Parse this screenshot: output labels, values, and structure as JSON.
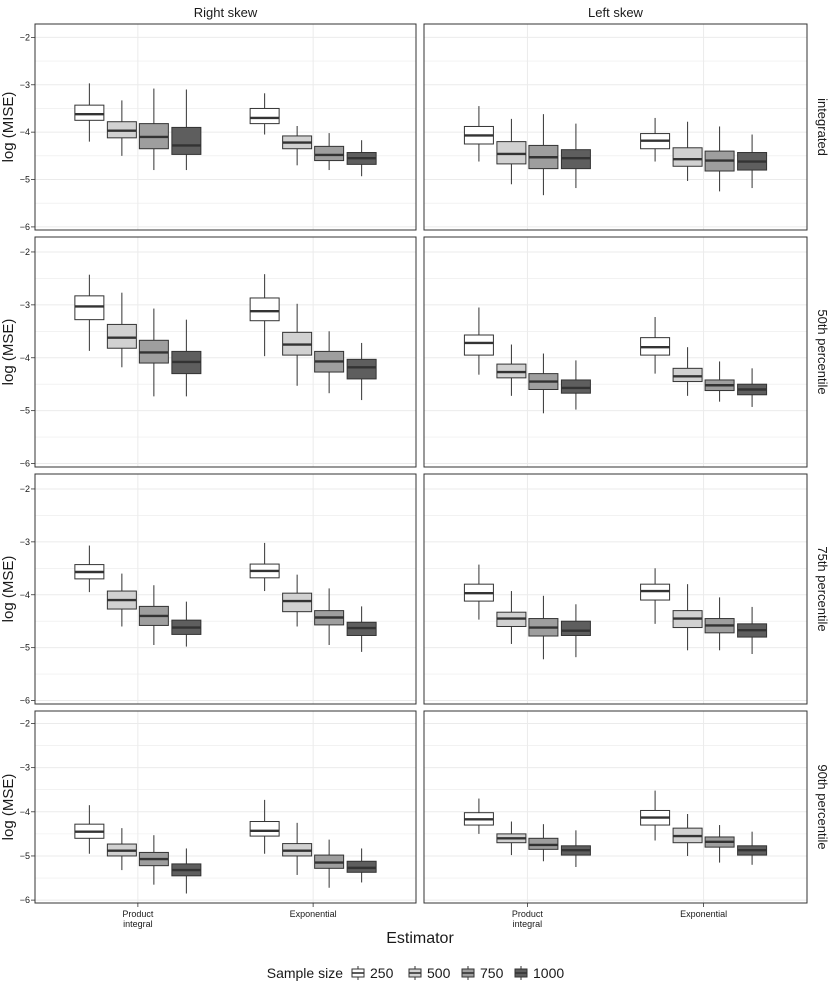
{
  "chart_data": {
    "type": "boxplot",
    "xlabel": "Estimator",
    "categories": [
      "Product\nintegral",
      "Exponential"
    ],
    "column_strips": [
      "Right skew",
      "Left skew"
    ],
    "legend": {
      "title": "Sample size",
      "position": "bottom",
      "entries": [
        {
          "label": "250",
          "fill": "#ffffff"
        },
        {
          "label": "500",
          "fill": "#d1d1d1"
        },
        {
          "label": "750",
          "fill": "#9e9e9e"
        },
        {
          "label": "1000",
          "fill": "#5e5e5e"
        }
      ]
    },
    "ylim": [
      -6,
      -2
    ],
    "yticks": [
      -2,
      -3,
      -4,
      -5,
      -6
    ],
    "grid": true,
    "rows": [
      {
        "strip": "integrated",
        "ylabel": "log (MISE)",
        "panels": [
          {
            "col": "Right skew",
            "groups": [
              {
                "category": "Product\nintegral",
                "boxes": [
                  {
                    "n": "250",
                    "whislo": -4.2,
                    "q1": -3.75,
                    "med": -3.62,
                    "q3": -3.43,
                    "whishi": -2.97
                  },
                  {
                    "n": "500",
                    "whislo": -4.5,
                    "q1": -4.12,
                    "med": -3.97,
                    "q3": -3.78,
                    "whishi": -3.33
                  },
                  {
                    "n": "750",
                    "whislo": -4.8,
                    "q1": -4.35,
                    "med": -4.1,
                    "q3": -3.82,
                    "whishi": -3.08
                  },
                  {
                    "n": "1000",
                    "whislo": -4.8,
                    "q1": -4.47,
                    "med": -4.28,
                    "q3": -3.9,
                    "whishi": -3.1
                  }
                ]
              },
              {
                "category": "Exponential",
                "boxes": [
                  {
                    "n": "250",
                    "whislo": -4.05,
                    "q1": -3.82,
                    "med": -3.7,
                    "q3": -3.5,
                    "whishi": -3.18
                  },
                  {
                    "n": "500",
                    "whislo": -4.7,
                    "q1": -4.35,
                    "med": -4.22,
                    "q3": -4.08,
                    "whishi": -3.87
                  },
                  {
                    "n": "750",
                    "whislo": -4.8,
                    "q1": -4.6,
                    "med": -4.48,
                    "q3": -4.3,
                    "whishi": -4.02
                  },
                  {
                    "n": "1000",
                    "whislo": -4.93,
                    "q1": -4.68,
                    "med": -4.55,
                    "q3": -4.43,
                    "whishi": -4.17
                  }
                ]
              }
            ]
          },
          {
            "col": "Left skew",
            "groups": [
              {
                "category": "Product\nintegral",
                "boxes": [
                  {
                    "n": "250",
                    "whislo": -4.62,
                    "q1": -4.25,
                    "med": -4.07,
                    "q3": -3.88,
                    "whishi": -3.45
                  },
                  {
                    "n": "500",
                    "whislo": -5.1,
                    "q1": -4.67,
                    "med": -4.46,
                    "q3": -4.2,
                    "whishi": -3.72
                  },
                  {
                    "n": "750",
                    "whislo": -5.33,
                    "q1": -4.77,
                    "med": -4.53,
                    "q3": -4.28,
                    "whishi": -3.62
                  },
                  {
                    "n": "1000",
                    "whislo": -5.18,
                    "q1": -4.77,
                    "med": -4.55,
                    "q3": -4.37,
                    "whishi": -3.82
                  }
                ]
              },
              {
                "category": "Exponential",
                "boxes": [
                  {
                    "n": "250",
                    "whislo": -4.62,
                    "q1": -4.35,
                    "med": -4.18,
                    "q3": -4.03,
                    "whishi": -3.7
                  },
                  {
                    "n": "500",
                    "whislo": -5.03,
                    "q1": -4.72,
                    "med": -4.57,
                    "q3": -4.33,
                    "whishi": -3.78
                  },
                  {
                    "n": "750",
                    "whislo": -5.25,
                    "q1": -4.82,
                    "med": -4.6,
                    "q3": -4.4,
                    "whishi": -3.88
                  },
                  {
                    "n": "1000",
                    "whislo": -5.18,
                    "q1": -4.8,
                    "med": -4.62,
                    "q3": -4.43,
                    "whishi": -4.05
                  }
                ]
              }
            ]
          }
        ]
      },
      {
        "strip": "50th percentile",
        "ylabel": "log (MSE)",
        "panels": [
          {
            "col": "Right skew",
            "groups": [
              {
                "category": "Product\nintegral",
                "boxes": [
                  {
                    "n": "250",
                    "whislo": -3.87,
                    "q1": -3.28,
                    "med": -3.03,
                    "q3": -2.83,
                    "whishi": -2.43
                  },
                  {
                    "n": "500",
                    "whislo": -4.18,
                    "q1": -3.82,
                    "med": -3.62,
                    "q3": -3.37,
                    "whishi": -2.77
                  },
                  {
                    "n": "750",
                    "whislo": -4.73,
                    "q1": -4.1,
                    "med": -3.9,
                    "q3": -3.67,
                    "whishi": -3.07
                  },
                  {
                    "n": "1000",
                    "whislo": -4.73,
                    "q1": -4.3,
                    "med": -4.08,
                    "q3": -3.88,
                    "whishi": -3.28
                  }
                ]
              },
              {
                "category": "Exponential",
                "boxes": [
                  {
                    "n": "250",
                    "whislo": -3.97,
                    "q1": -3.3,
                    "med": -3.12,
                    "q3": -2.87,
                    "whishi": -2.42
                  },
                  {
                    "n": "500",
                    "whislo": -4.53,
                    "q1": -3.95,
                    "med": -3.75,
                    "q3": -3.52,
                    "whishi": -2.98
                  },
                  {
                    "n": "750",
                    "whislo": -4.67,
                    "q1": -4.27,
                    "med": -4.07,
                    "q3": -3.88,
                    "whishi": -3.5
                  },
                  {
                    "n": "1000",
                    "whislo": -4.8,
                    "q1": -4.4,
                    "med": -4.18,
                    "q3": -4.03,
                    "whishi": -3.72
                  }
                ]
              }
            ]
          },
          {
            "col": "Left skew",
            "groups": [
              {
                "category": "Product\nintegral",
                "boxes": [
                  {
                    "n": "250",
                    "whislo": -4.32,
                    "q1": -3.95,
                    "med": -3.72,
                    "q3": -3.57,
                    "whishi": -3.05
                  },
                  {
                    "n": "500",
                    "whislo": -4.72,
                    "q1": -4.38,
                    "med": -4.27,
                    "q3": -4.12,
                    "whishi": -3.75
                  },
                  {
                    "n": "750",
                    "whislo": -5.05,
                    "q1": -4.6,
                    "med": -4.45,
                    "q3": -4.3,
                    "whishi": -3.92
                  },
                  {
                    "n": "1000",
                    "whislo": -4.98,
                    "q1": -4.67,
                    "med": -4.57,
                    "q3": -4.42,
                    "whishi": -4.05
                  }
                ]
              },
              {
                "category": "Exponential",
                "boxes": [
                  {
                    "n": "250",
                    "whislo": -4.3,
                    "q1": -3.95,
                    "med": -3.8,
                    "q3": -3.62,
                    "whishi": -3.23
                  },
                  {
                    "n": "500",
                    "whislo": -4.72,
                    "q1": -4.45,
                    "med": -4.35,
                    "q3": -4.2,
                    "whishi": -3.8
                  },
                  {
                    "n": "750",
                    "whislo": -4.83,
                    "q1": -4.62,
                    "med": -4.52,
                    "q3": -4.42,
                    "whishi": -4.07
                  },
                  {
                    "n": "1000",
                    "whislo": -4.93,
                    "q1": -4.7,
                    "med": -4.6,
                    "q3": -4.5,
                    "whishi": -4.2
                  }
                ]
              }
            ]
          }
        ]
      },
      {
        "strip": "75th percentile",
        "ylabel": "log (MSE)",
        "panels": [
          {
            "col": "Right skew",
            "groups": [
              {
                "category": "Product\nintegral",
                "boxes": [
                  {
                    "n": "250",
                    "whislo": -3.95,
                    "q1": -3.7,
                    "med": -3.57,
                    "q3": -3.43,
                    "whishi": -3.07
                  },
                  {
                    "n": "500",
                    "whislo": -4.6,
                    "q1": -4.27,
                    "med": -4.1,
                    "q3": -3.93,
                    "whishi": -3.6
                  },
                  {
                    "n": "750",
                    "whislo": -4.95,
                    "q1": -4.58,
                    "med": -4.4,
                    "q3": -4.22,
                    "whishi": -3.82
                  },
                  {
                    "n": "1000",
                    "whislo": -4.98,
                    "q1": -4.75,
                    "med": -4.62,
                    "q3": -4.48,
                    "whishi": -4.13
                  }
                ]
              },
              {
                "category": "Exponential",
                "boxes": [
                  {
                    "n": "250",
                    "whislo": -3.93,
                    "q1": -3.68,
                    "med": -3.55,
                    "q3": -3.42,
                    "whishi": -3.02
                  },
                  {
                    "n": "500",
                    "whislo": -4.6,
                    "q1": -4.32,
                    "med": -4.12,
                    "q3": -3.97,
                    "whishi": -3.62
                  },
                  {
                    "n": "750",
                    "whislo": -4.95,
                    "q1": -4.57,
                    "med": -4.43,
                    "q3": -4.3,
                    "whishi": -3.88
                  },
                  {
                    "n": "1000",
                    "whislo": -5.08,
                    "q1": -4.77,
                    "med": -4.63,
                    "q3": -4.52,
                    "whishi": -4.22
                  }
                ]
              }
            ]
          },
          {
            "col": "Left skew",
            "groups": [
              {
                "category": "Product\nintegral",
                "boxes": [
                  {
                    "n": "250",
                    "whislo": -4.47,
                    "q1": -4.12,
                    "med": -3.97,
                    "q3": -3.8,
                    "whishi": -3.43
                  },
                  {
                    "n": "500",
                    "whislo": -4.93,
                    "q1": -4.6,
                    "med": -4.45,
                    "q3": -4.33,
                    "whishi": -3.93
                  },
                  {
                    "n": "750",
                    "whislo": -5.22,
                    "q1": -4.78,
                    "med": -4.62,
                    "q3": -4.45,
                    "whishi": -4.02
                  },
                  {
                    "n": "1000",
                    "whislo": -5.18,
                    "q1": -4.77,
                    "med": -4.68,
                    "q3": -4.5,
                    "whishi": -4.18
                  }
                ]
              },
              {
                "category": "Exponential",
                "boxes": [
                  {
                    "n": "250",
                    "whislo": -4.55,
                    "q1": -4.1,
                    "med": -3.93,
                    "q3": -3.8,
                    "whishi": -3.5
                  },
                  {
                    "n": "500",
                    "whislo": -5.05,
                    "q1": -4.62,
                    "med": -4.45,
                    "q3": -4.3,
                    "whishi": -3.8
                  },
                  {
                    "n": "750",
                    "whislo": -5.05,
                    "q1": -4.72,
                    "med": -4.58,
                    "q3": -4.45,
                    "whishi": -4.05
                  },
                  {
                    "n": "1000",
                    "whislo": -5.12,
                    "q1": -4.8,
                    "med": -4.67,
                    "q3": -4.55,
                    "whishi": -4.23
                  }
                ]
              }
            ]
          }
        ]
      },
      {
        "strip": "90th percentile",
        "ylabel": "log (MSE)",
        "panels": [
          {
            "col": "Right skew",
            "groups": [
              {
                "category": "Product\nintegral",
                "boxes": [
                  {
                    "n": "250",
                    "whislo": -4.95,
                    "q1": -4.6,
                    "med": -4.45,
                    "q3": -4.28,
                    "whishi": -3.85
                  },
                  {
                    "n": "500",
                    "whislo": -5.32,
                    "q1": -5.0,
                    "med": -4.88,
                    "q3": -4.73,
                    "whishi": -4.37
                  },
                  {
                    "n": "750",
                    "whislo": -5.65,
                    "q1": -5.22,
                    "med": -5.07,
                    "q3": -4.92,
                    "whishi": -4.53
                  },
                  {
                    "n": "1000",
                    "whislo": -5.85,
                    "q1": -5.45,
                    "med": -5.32,
                    "q3": -5.18,
                    "whishi": -4.83
                  }
                ]
              },
              {
                "category": "Exponential",
                "boxes": [
                  {
                    "n": "250",
                    "whislo": -4.95,
                    "q1": -4.55,
                    "med": -4.43,
                    "q3": -4.22,
                    "whishi": -3.73
                  },
                  {
                    "n": "500",
                    "whislo": -5.43,
                    "q1": -5.0,
                    "med": -4.88,
                    "q3": -4.72,
                    "whishi": -4.25
                  },
                  {
                    "n": "750",
                    "whislo": -5.72,
                    "q1": -5.28,
                    "med": -5.15,
                    "q3": -4.98,
                    "whishi": -4.63
                  },
                  {
                    "n": "1000",
                    "whislo": -5.6,
                    "q1": -5.37,
                    "med": -5.27,
                    "q3": -5.12,
                    "whishi": -4.83
                  }
                ]
              }
            ]
          },
          {
            "col": "Left skew",
            "groups": [
              {
                "category": "Product\nintegral",
                "boxes": [
                  {
                    "n": "250",
                    "whislo": -4.5,
                    "q1": -4.3,
                    "med": -4.17,
                    "q3": -4.02,
                    "whishi": -3.7
                  },
                  {
                    "n": "500",
                    "whislo": -4.98,
                    "q1": -4.7,
                    "med": -4.6,
                    "q3": -4.5,
                    "whishi": -4.22
                  },
                  {
                    "n": "750",
                    "whislo": -5.12,
                    "q1": -4.85,
                    "med": -4.75,
                    "q3": -4.6,
                    "whishi": -4.28
                  },
                  {
                    "n": "1000",
                    "whislo": -5.25,
                    "q1": -4.98,
                    "med": -4.87,
                    "q3": -4.77,
                    "whishi": -4.42
                  }
                ]
              },
              {
                "category": "Exponential",
                "boxes": [
                  {
                    "n": "250",
                    "whislo": -4.65,
                    "q1": -4.3,
                    "med": -4.13,
                    "q3": -3.97,
                    "whishi": -3.52
                  },
                  {
                    "n": "500",
                    "whislo": -5.0,
                    "q1": -4.7,
                    "med": -4.55,
                    "q3": -4.37,
                    "whishi": -4.05
                  },
                  {
                    "n": "750",
                    "whislo": -5.15,
                    "q1": -4.8,
                    "med": -4.68,
                    "q3": -4.57,
                    "whishi": -4.3
                  },
                  {
                    "n": "1000",
                    "whislo": -5.2,
                    "q1": -4.98,
                    "med": -4.87,
                    "q3": -4.77,
                    "whishi": -4.45
                  }
                ]
              }
            ]
          }
        ]
      }
    ]
  }
}
